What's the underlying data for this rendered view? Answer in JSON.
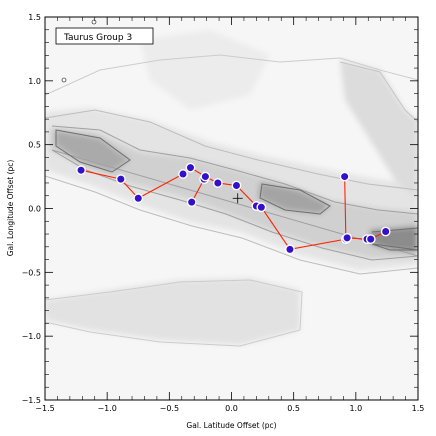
{
  "chart_data": {
    "type": "scatter",
    "legend_label": "Taurus Group 3",
    "legend_position": "top-left",
    "xlabel": "Gal. Latitude Offset (pc)",
    "ylabel": "Gal. Longitude Offset (pc)",
    "xlim": [
      -1.5,
      1.5
    ],
    "ylim": [
      -1.5,
      1.5
    ],
    "xticks": [
      -1.5,
      -1.0,
      -0.5,
      0.0,
      0.5,
      1.0,
      1.5
    ],
    "yticks": [
      -1.5,
      -1.0,
      -0.5,
      0.0,
      0.5,
      1.0,
      1.5
    ],
    "xtick_labels": [
      "−1.5",
      "−1.0",
      "−0.5",
      "0.0",
      "0.5",
      "1.0",
      "1.5"
    ],
    "ytick_labels": [
      "−1.5",
      "−1.0",
      "−0.5",
      "0.0",
      "0.5",
      "1.0",
      "1.5"
    ],
    "background": "grayscale column-density map with contours",
    "center_marker": {
      "x": 0.05,
      "y": 0.08,
      "symbol": "plus"
    },
    "colors": {
      "point_fill": "#3311cc",
      "point_stroke": "#ffffff",
      "edge": "#ff2200",
      "contour_light": "#bdbdbd",
      "contour_dark": "#6e6e6e"
    },
    "points": [
      {
        "x": -1.21,
        "y": 0.3
      },
      {
        "x": -0.89,
        "y": 0.23
      },
      {
        "x": -0.75,
        "y": 0.08
      },
      {
        "x": -0.32,
        "y": 0.05
      },
      {
        "x": -0.22,
        "y": 0.23
      },
      {
        "x": -0.21,
        "y": 0.25
      },
      {
        "x": -0.33,
        "y": 0.32
      },
      {
        "x": -0.39,
        "y": 0.27
      },
      {
        "x": -0.11,
        "y": 0.2
      },
      {
        "x": 0.04,
        "y": 0.18
      },
      {
        "x": 0.2,
        "y": 0.02
      },
      {
        "x": 0.24,
        "y": 0.01
      },
      {
        "x": 0.47,
        "y": -0.32
      },
      {
        "x": 0.92,
        "y": -0.24
      },
      {
        "x": 0.91,
        "y": 0.25
      },
      {
        "x": 0.93,
        "y": -0.23
      },
      {
        "x": 1.09,
        "y": -0.24
      },
      {
        "x": 1.12,
        "y": -0.24
      },
      {
        "x": 1.24,
        "y": -0.18
      }
    ],
    "edges": [
      [
        0,
        1
      ],
      [
        1,
        2
      ],
      [
        2,
        7
      ],
      [
        7,
        6
      ],
      [
        6,
        5
      ],
      [
        3,
        4
      ],
      [
        5,
        8
      ],
      [
        8,
        9
      ],
      [
        9,
        10
      ],
      [
        10,
        11
      ],
      [
        11,
        12
      ],
      [
        12,
        13
      ],
      [
        13,
        14
      ],
      [
        13,
        15
      ],
      [
        15,
        16
      ],
      [
        16,
        17
      ],
      [
        17,
        18
      ]
    ]
  }
}
